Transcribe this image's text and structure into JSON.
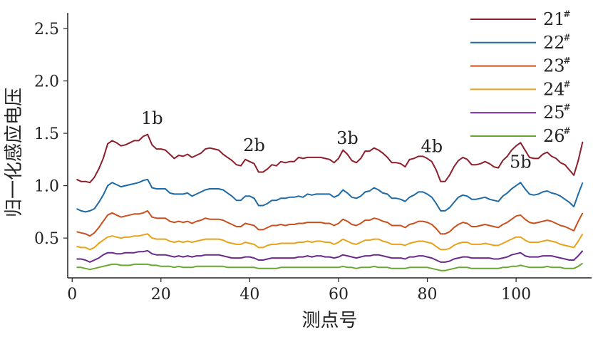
{
  "chart_data": {
    "type": "line",
    "xlabel": "测点号",
    "ylabel": "归一化感应电压",
    "xlim": [
      -1,
      117
    ],
    "ylim": [
      0.12,
      2.65
    ],
    "xticks": [
      0,
      20,
      40,
      60,
      80,
      100
    ],
    "yticks": [
      0.5,
      1.0,
      1.5,
      2.0,
      2.5
    ],
    "xtick_labels": [
      "0",
      "20",
      "40",
      "60",
      "80",
      "100"
    ],
    "ytick_labels": [
      "0.5",
      "1.0",
      "1.5",
      "2.0",
      "2.5"
    ],
    "grid": false,
    "legend_position": "top-right",
    "x": [
      1,
      2,
      3,
      4,
      5,
      6,
      7,
      8,
      9,
      10,
      11,
      12,
      13,
      14,
      15,
      16,
      17,
      18,
      19,
      20,
      21,
      22,
      23,
      24,
      25,
      26,
      27,
      28,
      29,
      30,
      31,
      32,
      33,
      34,
      35,
      36,
      37,
      38,
      39,
      40,
      41,
      42,
      43,
      44,
      45,
      46,
      47,
      48,
      49,
      50,
      51,
      52,
      53,
      54,
      55,
      56,
      57,
      58,
      59,
      60,
      61,
      62,
      63,
      64,
      65,
      66,
      67,
      68,
      69,
      70,
      71,
      72,
      73,
      74,
      75,
      76,
      77,
      78,
      79,
      80,
      81,
      82,
      83,
      84,
      85,
      86,
      87,
      88,
      89,
      90,
      91,
      92,
      93,
      94,
      95,
      96,
      97,
      98,
      99,
      100,
      101,
      102,
      103,
      104,
      105,
      106,
      107,
      108,
      109,
      110,
      111,
      112,
      113,
      114,
      115
    ],
    "series": [
      {
        "name": "21",
        "sup": "#",
        "color": "#8c1f2b",
        "values": [
          1.06,
          1.04,
          1.04,
          1.03,
          1.08,
          1.16,
          1.26,
          1.4,
          1.43,
          1.41,
          1.38,
          1.39,
          1.41,
          1.43,
          1.43,
          1.47,
          1.49,
          1.39,
          1.35,
          1.35,
          1.34,
          1.3,
          1.26,
          1.29,
          1.28,
          1.3,
          1.27,
          1.29,
          1.31,
          1.35,
          1.36,
          1.35,
          1.34,
          1.3,
          1.27,
          1.24,
          1.2,
          1.19,
          1.25,
          1.23,
          1.21,
          1.13,
          1.13,
          1.16,
          1.2,
          1.19,
          1.23,
          1.22,
          1.23,
          1.23,
          1.27,
          1.26,
          1.27,
          1.27,
          1.27,
          1.27,
          1.26,
          1.25,
          1.22,
          1.26,
          1.34,
          1.3,
          1.24,
          1.22,
          1.26,
          1.33,
          1.33,
          1.36,
          1.34,
          1.31,
          1.27,
          1.22,
          1.22,
          1.21,
          1.18,
          1.25,
          1.26,
          1.28,
          1.28,
          1.26,
          1.23,
          1.15,
          1.04,
          1.04,
          1.1,
          1.18,
          1.24,
          1.27,
          1.25,
          1.2,
          1.2,
          1.21,
          1.23,
          1.21,
          1.18,
          1.17,
          1.24,
          1.28,
          1.34,
          1.38,
          1.41,
          1.34,
          1.27,
          1.26,
          1.26,
          1.3,
          1.32,
          1.28,
          1.26,
          1.22,
          1.2,
          1.15,
          1.1,
          1.24,
          1.42
        ]
      },
      {
        "name": "22",
        "sup": "#",
        "color": "#1f6aa5",
        "values": [
          0.78,
          0.76,
          0.75,
          0.76,
          0.78,
          0.84,
          0.91,
          1.0,
          1.03,
          1.01,
          0.99,
          1.0,
          1.01,
          1.02,
          1.03,
          1.05,
          1.06,
          0.98,
          0.97,
          0.97,
          0.97,
          0.93,
          0.92,
          0.92,
          0.92,
          0.93,
          0.9,
          0.92,
          0.94,
          0.96,
          0.97,
          0.97,
          0.97,
          0.96,
          0.93,
          0.9,
          0.86,
          0.86,
          0.9,
          0.9,
          0.88,
          0.81,
          0.81,
          0.83,
          0.86,
          0.86,
          0.88,
          0.88,
          0.89,
          0.89,
          0.9,
          0.89,
          0.92,
          0.91,
          0.92,
          0.92,
          0.92,
          0.92,
          0.89,
          0.91,
          0.96,
          0.93,
          0.89,
          0.88,
          0.9,
          0.94,
          0.95,
          0.98,
          0.96,
          0.93,
          0.92,
          0.88,
          0.88,
          0.87,
          0.85,
          0.89,
          0.91,
          0.94,
          0.94,
          0.92,
          0.89,
          0.83,
          0.76,
          0.76,
          0.79,
          0.84,
          0.89,
          0.91,
          0.9,
          0.87,
          0.87,
          0.88,
          0.89,
          0.87,
          0.86,
          0.85,
          0.9,
          0.93,
          0.97,
          1.0,
          1.03,
          0.97,
          0.92,
          0.91,
          0.92,
          0.94,
          0.95,
          0.93,
          0.92,
          0.9,
          0.87,
          0.84,
          0.8,
          0.92,
          1.03
        ]
      },
      {
        "name": "23",
        "sup": "#",
        "color": "#c8501f",
        "values": [
          0.56,
          0.55,
          0.54,
          0.52,
          0.55,
          0.6,
          0.66,
          0.72,
          0.74,
          0.72,
          0.7,
          0.71,
          0.72,
          0.73,
          0.73,
          0.74,
          0.76,
          0.7,
          0.69,
          0.69,
          0.69,
          0.66,
          0.65,
          0.66,
          0.65,
          0.66,
          0.64,
          0.66,
          0.67,
          0.69,
          0.68,
          0.68,
          0.68,
          0.67,
          0.65,
          0.63,
          0.61,
          0.61,
          0.64,
          0.63,
          0.62,
          0.58,
          0.58,
          0.6,
          0.62,
          0.62,
          0.63,
          0.62,
          0.63,
          0.63,
          0.64,
          0.64,
          0.65,
          0.65,
          0.65,
          0.65,
          0.64,
          0.64,
          0.62,
          0.64,
          0.68,
          0.66,
          0.63,
          0.62,
          0.64,
          0.67,
          0.67,
          0.69,
          0.68,
          0.66,
          0.65,
          0.62,
          0.62,
          0.62,
          0.6,
          0.63,
          0.64,
          0.66,
          0.66,
          0.65,
          0.63,
          0.59,
          0.54,
          0.54,
          0.56,
          0.6,
          0.63,
          0.65,
          0.64,
          0.61,
          0.61,
          0.62,
          0.63,
          0.62,
          0.61,
          0.6,
          0.63,
          0.65,
          0.68,
          0.71,
          0.72,
          0.68,
          0.65,
          0.64,
          0.65,
          0.66,
          0.67,
          0.66,
          0.64,
          0.62,
          0.61,
          0.59,
          0.57,
          0.66,
          0.74
        ]
      },
      {
        "name": "24",
        "sup": "#",
        "color": "#e8a21a",
        "values": [
          0.42,
          0.41,
          0.41,
          0.39,
          0.41,
          0.45,
          0.48,
          0.51,
          0.52,
          0.51,
          0.5,
          0.51,
          0.51,
          0.52,
          0.52,
          0.53,
          0.54,
          0.5,
          0.49,
          0.49,
          0.49,
          0.47,
          0.46,
          0.47,
          0.46,
          0.47,
          0.46,
          0.47,
          0.48,
          0.49,
          0.49,
          0.49,
          0.49,
          0.48,
          0.46,
          0.45,
          0.44,
          0.44,
          0.46,
          0.45,
          0.44,
          0.41,
          0.41,
          0.43,
          0.44,
          0.44,
          0.45,
          0.45,
          0.45,
          0.45,
          0.46,
          0.46,
          0.47,
          0.46,
          0.47,
          0.47,
          0.46,
          0.46,
          0.44,
          0.46,
          0.49,
          0.47,
          0.45,
          0.44,
          0.46,
          0.48,
          0.48,
          0.49,
          0.49,
          0.47,
          0.46,
          0.44,
          0.44,
          0.44,
          0.43,
          0.45,
          0.46,
          0.47,
          0.47,
          0.46,
          0.45,
          0.42,
          0.39,
          0.39,
          0.4,
          0.43,
          0.45,
          0.46,
          0.46,
          0.44,
          0.44,
          0.44,
          0.45,
          0.44,
          0.43,
          0.43,
          0.45,
          0.47,
          0.49,
          0.51,
          0.51,
          0.48,
          0.46,
          0.46,
          0.46,
          0.47,
          0.48,
          0.47,
          0.46,
          0.44,
          0.43,
          0.42,
          0.41,
          0.47,
          0.54
        ]
      },
      {
        "name": "25",
        "sup": "#",
        "color": "#6a2a8a",
        "values": [
          0.3,
          0.3,
          0.29,
          0.27,
          0.29,
          0.31,
          0.34,
          0.36,
          0.36,
          0.35,
          0.35,
          0.36,
          0.36,
          0.36,
          0.37,
          0.37,
          0.38,
          0.35,
          0.34,
          0.34,
          0.34,
          0.33,
          0.32,
          0.33,
          0.32,
          0.33,
          0.32,
          0.33,
          0.33,
          0.34,
          0.34,
          0.34,
          0.34,
          0.33,
          0.32,
          0.31,
          0.31,
          0.31,
          0.32,
          0.32,
          0.31,
          0.29,
          0.29,
          0.3,
          0.31,
          0.31,
          0.31,
          0.31,
          0.31,
          0.31,
          0.32,
          0.32,
          0.33,
          0.32,
          0.33,
          0.33,
          0.32,
          0.32,
          0.31,
          0.32,
          0.34,
          0.33,
          0.32,
          0.31,
          0.32,
          0.33,
          0.33,
          0.34,
          0.34,
          0.33,
          0.32,
          0.31,
          0.31,
          0.31,
          0.3,
          0.32,
          0.32,
          0.33,
          0.33,
          0.32,
          0.31,
          0.29,
          0.27,
          0.27,
          0.28,
          0.3,
          0.31,
          0.32,
          0.32,
          0.31,
          0.31,
          0.31,
          0.31,
          0.31,
          0.3,
          0.3,
          0.31,
          0.32,
          0.34,
          0.35,
          0.36,
          0.33,
          0.32,
          0.32,
          0.32,
          0.33,
          0.33,
          0.33,
          0.32,
          0.31,
          0.3,
          0.29,
          0.29,
          0.33,
          0.38
        ]
      },
      {
        "name": "26",
        "sup": "#",
        "color": "#6aa72e",
        "values": [
          0.22,
          0.22,
          0.21,
          0.2,
          0.21,
          0.22,
          0.23,
          0.24,
          0.25,
          0.25,
          0.24,
          0.24,
          0.24,
          0.25,
          0.25,
          0.25,
          0.25,
          0.24,
          0.24,
          0.23,
          0.23,
          0.23,
          0.22,
          0.23,
          0.22,
          0.22,
          0.22,
          0.23,
          0.23,
          0.23,
          0.23,
          0.23,
          0.23,
          0.23,
          0.22,
          0.22,
          0.22,
          0.22,
          0.22,
          0.22,
          0.22,
          0.21,
          0.21,
          0.21,
          0.21,
          0.21,
          0.22,
          0.22,
          0.22,
          0.22,
          0.22,
          0.22,
          0.22,
          0.22,
          0.22,
          0.22,
          0.22,
          0.22,
          0.22,
          0.22,
          0.23,
          0.22,
          0.22,
          0.21,
          0.22,
          0.22,
          0.22,
          0.23,
          0.22,
          0.22,
          0.22,
          0.21,
          0.21,
          0.21,
          0.21,
          0.22,
          0.22,
          0.22,
          0.22,
          0.22,
          0.21,
          0.2,
          0.19,
          0.19,
          0.2,
          0.21,
          0.22,
          0.22,
          0.22,
          0.21,
          0.21,
          0.21,
          0.21,
          0.21,
          0.21,
          0.21,
          0.22,
          0.22,
          0.23,
          0.23,
          0.24,
          0.23,
          0.22,
          0.22,
          0.22,
          0.22,
          0.23,
          0.22,
          0.22,
          0.22,
          0.21,
          0.21,
          0.21,
          0.23,
          0.26
        ]
      }
    ],
    "annotations": [
      {
        "text": "1b",
        "x": 18,
        "y": 1.59
      },
      {
        "text": "2b",
        "x": 41,
        "y": 1.33
      },
      {
        "text": "3b",
        "x": 62,
        "y": 1.4
      },
      {
        "text": "4b",
        "x": 81,
        "y": 1.32
      },
      {
        "text": "5b",
        "x": 101,
        "y": 1.17
      }
    ]
  }
}
